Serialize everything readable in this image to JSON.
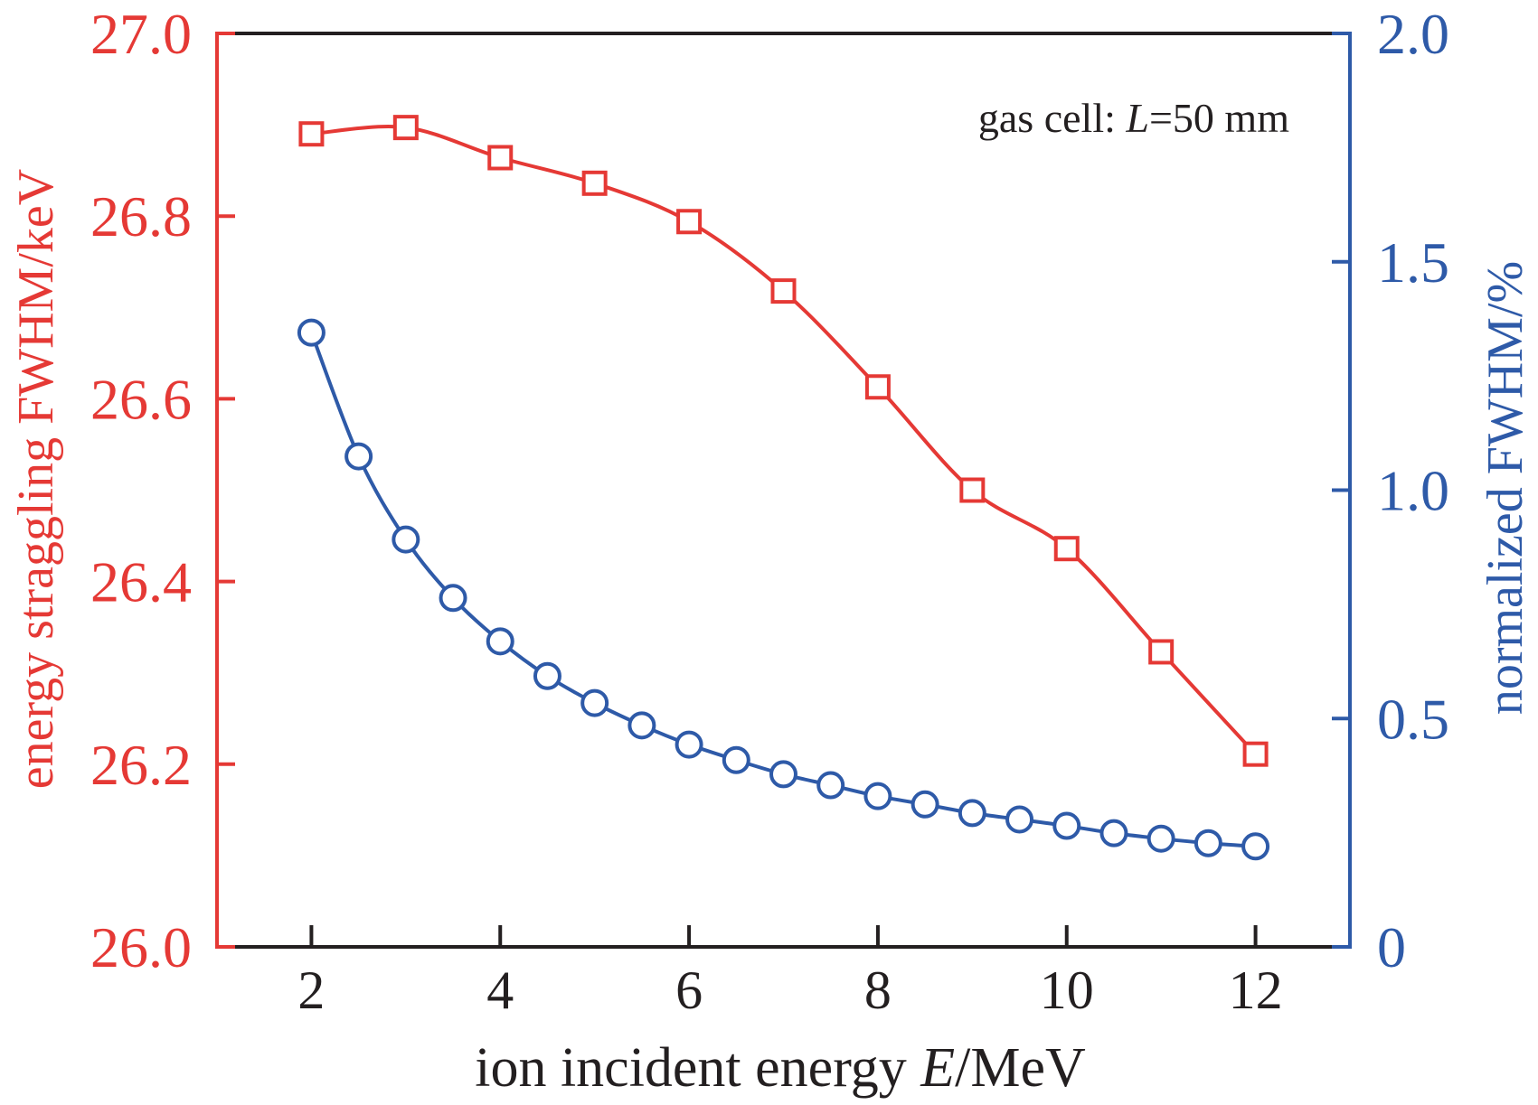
{
  "colors": {
    "left_series": "#E53935",
    "right_series": "#2E5AA8",
    "frame": "#231F20",
    "text": "#231F20"
  },
  "chart_data": {
    "type": "line",
    "title": "",
    "annotation": {
      "prefix": "gas cell: ",
      "var": "L",
      "suffix": "=50 mm"
    },
    "xlabel": {
      "prefix": "ion incident energy ",
      "var": "E",
      "suffix": "/MeV"
    },
    "ylabel_left": "energy straggling FWHM/keV",
    "ylabel_right": "normalized FWHM/%",
    "xlim": [
      1,
      13
    ],
    "ylim_left": [
      26.0,
      27.0
    ],
    "ylim_right": [
      0,
      2.0
    ],
    "x_ticks": [
      2,
      4,
      6,
      8,
      10,
      12
    ],
    "x_tick_labels": [
      "2",
      "4",
      "6",
      "8",
      "10",
      "12"
    ],
    "y_left_ticks": [
      26.0,
      26.2,
      26.4,
      26.6,
      26.8,
      27.0
    ],
    "y_left_tick_labels": [
      "26.0",
      "26.2",
      "26.4",
      "26.6",
      "26.8",
      "27.0"
    ],
    "y_right_ticks": [
      0,
      0.5,
      1.0,
      1.5,
      2.0
    ],
    "y_right_tick_labels": [
      "0",
      "0.5",
      "1.0",
      "1.5",
      "2.0"
    ],
    "grid": false,
    "legend": "none",
    "series": [
      {
        "name": "energy straggling FWHM",
        "axis": "left",
        "marker": "square",
        "x": [
          2,
          3,
          4,
          5,
          6,
          7,
          8,
          9,
          10,
          11,
          12
        ],
        "values": [
          26.89,
          26.897,
          26.864,
          26.836,
          26.794,
          26.718,
          26.613,
          26.5,
          26.436,
          26.323,
          26.211
        ]
      },
      {
        "name": "normalized FWHM",
        "axis": "right",
        "marker": "circle",
        "x": [
          2,
          2.5,
          3,
          3.5,
          4,
          4.5,
          5,
          5.5,
          6,
          6.5,
          7,
          7.5,
          8,
          8.5,
          9,
          9.5,
          10,
          10.5,
          11,
          11.5,
          12
        ],
        "values": [
          1.345,
          1.074,
          0.892,
          0.764,
          0.669,
          0.593,
          0.534,
          0.485,
          0.443,
          0.409,
          0.378,
          0.354,
          0.33,
          0.312,
          0.293,
          0.279,
          0.265,
          0.249,
          0.237,
          0.227,
          0.22
        ]
      }
    ]
  }
}
